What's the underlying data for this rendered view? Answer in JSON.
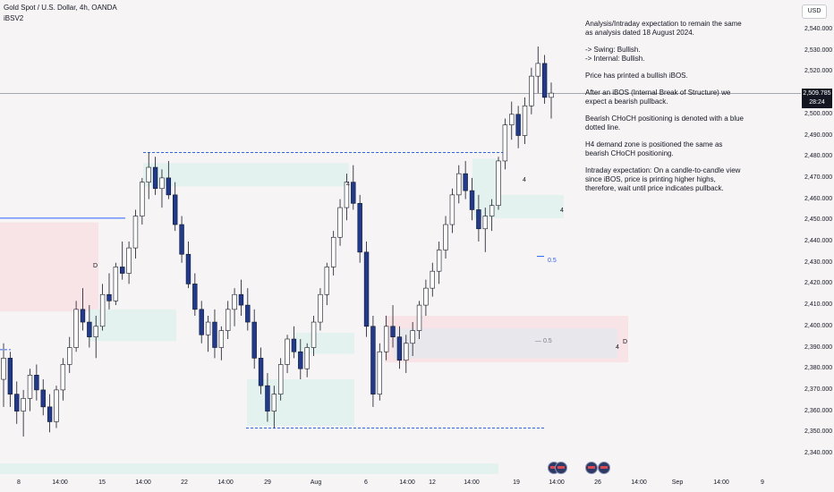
{
  "header": {
    "symbol_line": "Gold Spot / U.S. Dollar, 4h, OANDA",
    "indicator": "iBSV2"
  },
  "currency": "USD",
  "price_label": {
    "price": "2,509.785",
    "countdown": "28:24"
  },
  "annotations": {
    "note": [
      "Analysis/Intraday expectation to remain the same as analysis dated 18 August 2024.",
      "-> Swing:  Bullish.\n-> Internal:  Bullish.",
      "Price has printed a bullish iBOS.",
      "After an iBOS (Internal Break of Structure) we expect a bearish pullback.",
      "Bearish CHoCH positioning is denoted with a blue dotted line.",
      "H4 demand zone is positioned the same as bearish CHoCH positioning.",
      "Intraday expectation: On a candle-to-candle view since iBOS, price is printing higher highs, therefore, wait until price indicates pullback."
    ],
    "fib_label_1": "0.5",
    "fib_label_2": "— 0.5",
    "marker_4": "4",
    "marker_D": "D"
  },
  "colors": {
    "background": "#f7f4f6",
    "bull": "#ffffff",
    "bear": "#1f3a93",
    "wick": "#131722",
    "demand_zone": "#e3f2ef",
    "supply_zone": "#f8e4e6",
    "choch_line": "#2962ff"
  },
  "chart_data": {
    "type": "candlestick",
    "title": "Gold Spot / U.S. Dollar, 4h, OANDA",
    "ylim": [
      2335,
      2545
    ],
    "y_ticks": [
      "2,540.000",
      "2,530.000",
      "2,520.000",
      "2,510.000",
      "2,500.000",
      "2,490.000",
      "2,480.000",
      "2,470.000",
      "2,460.000",
      "2,450.000",
      "2,440.000",
      "2,430.000",
      "2,420.000",
      "2,410.000",
      "2,400.000",
      "2,390.000",
      "2,380.000",
      "2,370.000",
      "2,360.000",
      "2,350.000",
      "2,340.000"
    ],
    "x_ticks": [
      "8",
      "14:00",
      "15",
      "14:00",
      "22",
      "14:00",
      "29",
      "Aug",
      "6",
      "14:00",
      "12",
      "14:00",
      "19",
      "14:00",
      "26",
      "14:00",
      "Sep",
      "14:00",
      "9"
    ],
    "current_price": 2509.785,
    "grid": false,
    "ohlc": [
      [
        2375,
        2392,
        2362,
        2385
      ],
      [
        2385,
        2388,
        2362,
        2368
      ],
      [
        2368,
        2374,
        2354,
        2360
      ],
      [
        2360,
        2370,
        2348,
        2366
      ],
      [
        2366,
        2380,
        2360,
        2377
      ],
      [
        2377,
        2382,
        2365,
        2370
      ],
      [
        2370,
        2375,
        2358,
        2362
      ],
      [
        2362,
        2368,
        2350,
        2355
      ],
      [
        2355,
        2372,
        2352,
        2370
      ],
      [
        2370,
        2385,
        2365,
        2382
      ],
      [
        2382,
        2395,
        2378,
        2390
      ],
      [
        2390,
        2412,
        2388,
        2408
      ],
      [
        2408,
        2418,
        2398,
        2402
      ],
      [
        2402,
        2410,
        2390,
        2395
      ],
      [
        2395,
        2405,
        2385,
        2400
      ],
      [
        2400,
        2420,
        2398,
        2415
      ],
      [
        2415,
        2425,
        2408,
        2412
      ],
      [
        2412,
        2430,
        2410,
        2428
      ],
      [
        2428,
        2440,
        2422,
        2425
      ],
      [
        2425,
        2440,
        2420,
        2437
      ],
      [
        2437,
        2455,
        2432,
        2452
      ],
      [
        2452,
        2470,
        2448,
        2468
      ],
      [
        2468,
        2482,
        2460,
        2475
      ],
      [
        2475,
        2480,
        2462,
        2465
      ],
      [
        2465,
        2474,
        2456,
        2470
      ],
      [
        2470,
        2478,
        2460,
        2462
      ],
      [
        2462,
        2468,
        2445,
        2448
      ],
      [
        2448,
        2452,
        2430,
        2434
      ],
      [
        2434,
        2440,
        2418,
        2420
      ],
      [
        2420,
        2425,
        2405,
        2408
      ],
      [
        2408,
        2412,
        2392,
        2396
      ],
      [
        2396,
        2405,
        2388,
        2402
      ],
      [
        2402,
        2408,
        2385,
        2390
      ],
      [
        2390,
        2400,
        2384,
        2398
      ],
      [
        2398,
        2412,
        2394,
        2408
      ],
      [
        2408,
        2418,
        2400,
        2415
      ],
      [
        2415,
        2422,
        2405,
        2410
      ],
      [
        2410,
        2418,
        2398,
        2402
      ],
      [
        2402,
        2408,
        2380,
        2385
      ],
      [
        2385,
        2390,
        2368,
        2372
      ],
      [
        2372,
        2378,
        2355,
        2360
      ],
      [
        2360,
        2372,
        2352,
        2368
      ],
      [
        2368,
        2385,
        2365,
        2382
      ],
      [
        2382,
        2396,
        2378,
        2394
      ],
      [
        2394,
        2400,
        2385,
        2388
      ],
      [
        2388,
        2394,
        2375,
        2380
      ],
      [
        2380,
        2392,
        2376,
        2390
      ],
      [
        2390,
        2405,
        2386,
        2402
      ],
      [
        2402,
        2418,
        2398,
        2415
      ],
      [
        2415,
        2430,
        2410,
        2428
      ],
      [
        2428,
        2445,
        2424,
        2442
      ],
      [
        2442,
        2460,
        2438,
        2456
      ],
      [
        2456,
        2472,
        2450,
        2468
      ],
      [
        2468,
        2476,
        2455,
        2458
      ],
      [
        2458,
        2462,
        2430,
        2435
      ],
      [
        2435,
        2440,
        2395,
        2400
      ],
      [
        2400,
        2405,
        2362,
        2368
      ],
      [
        2368,
        2392,
        2365,
        2388
      ],
      [
        2388,
        2405,
        2384,
        2400
      ],
      [
        2400,
        2410,
        2390,
        2395
      ],
      [
        2395,
        2400,
        2380,
        2384
      ],
      [
        2384,
        2396,
        2378,
        2392
      ],
      [
        2392,
        2402,
        2386,
        2398
      ],
      [
        2398,
        2412,
        2394,
        2410
      ],
      [
        2410,
        2422,
        2405,
        2418
      ],
      [
        2418,
        2430,
        2414,
        2426
      ],
      [
        2426,
        2440,
        2420,
        2436
      ],
      [
        2436,
        2452,
        2432,
        2448
      ],
      [
        2448,
        2465,
        2444,
        2462
      ],
      [
        2462,
        2476,
        2458,
        2472
      ],
      [
        2472,
        2478,
        2460,
        2464
      ],
      [
        2464,
        2470,
        2450,
        2455
      ],
      [
        2455,
        2462,
        2440,
        2446
      ],
      [
        2446,
        2456,
        2435,
        2452
      ],
      [
        2452,
        2460,
        2445,
        2457
      ],
      [
        2457,
        2480,
        2455,
        2478
      ],
      [
        2478,
        2498,
        2474,
        2495
      ],
      [
        2495,
        2506,
        2488,
        2500
      ],
      [
        2500,
        2504,
        2484,
        2490
      ],
      [
        2490,
        2508,
        2486,
        2504
      ],
      [
        2504,
        2522,
        2500,
        2518
      ],
      [
        2518,
        2532,
        2510,
        2524
      ],
      [
        2524,
        2528,
        2505,
        2508
      ],
      [
        2508,
        2515,
        2498,
        2510
      ]
    ]
  }
}
